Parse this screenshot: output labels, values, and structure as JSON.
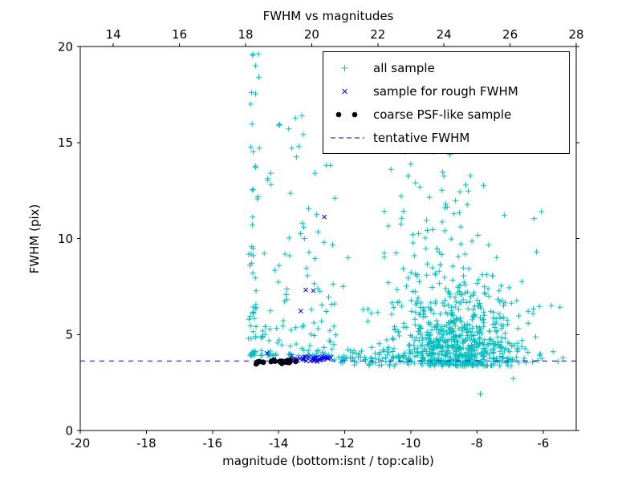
{
  "chart_data": {
    "type": "scatter",
    "title": "FWHM vs magnitudes",
    "xlabel": "magnitude (bottom:isnt / top:calib)",
    "ylabel": "FWHM (pix)",
    "xlim": [
      -20,
      -5
    ],
    "ylim": [
      0,
      20
    ],
    "bottom_ticks": [
      -20,
      -18,
      -16,
      -14,
      -12,
      -10,
      -8,
      -6
    ],
    "top_ticks": [
      14,
      16,
      18,
      20,
      22,
      24,
      26,
      28
    ],
    "top_axis_offset_from_bottom": 33,
    "y_ticks": [
      0,
      5,
      10,
      15,
      20
    ],
    "tentative_fwhm": 3.62,
    "grid": false,
    "legend_position": "upper right",
    "colors": {
      "all_sample": "#00bfbf",
      "rough_sample": "#0000ff",
      "psf_sample": "#000000",
      "tentative_line": "#0000ff",
      "axis": "#000000",
      "background": "#ffffff"
    },
    "legend": [
      {
        "label": "all sample",
        "marker": "plus",
        "color": "#00bfbf"
      },
      {
        "label": "sample for rough FWHM",
        "marker": "x",
        "color": "#0000ff"
      },
      {
        "label": "coarse PSF-like sample",
        "marker": "dot",
        "color": "#000000"
      },
      {
        "label": "tentative FWHM",
        "marker": "dashed-line",
        "color": "#0000ff"
      }
    ],
    "series": [
      {
        "name": "all sample",
        "marker": "plus",
        "color": "#00bfbf",
        "seed": 11,
        "clusters": [
          {
            "count": 55,
            "x": {
              "dist": "gauss",
              "mu": -14.75,
              "sd": 0.07
            },
            "y": {
              "dist": "pow",
              "min": 3.9,
              "max": 19.7,
              "pow": 2.2
            }
          },
          {
            "count": 120,
            "x": {
              "dist": "uniform",
              "min": -14.55,
              "max": -12.25
            },
            "y": {
              "dist": "pow",
              "min": 3.9,
              "max": 16.5,
              "pow": 2.6
            }
          },
          {
            "count": 55,
            "x": {
              "dist": "uniform",
              "min": -12.35,
              "max": -9.9
            },
            "y": {
              "dist": "gauss",
              "mu": 3.75,
              "sd": 0.18
            }
          },
          {
            "count": 760,
            "x": {
              "dist": "gauss",
              "mu": -8.65,
              "sd": 1.0,
              "min": -11.3,
              "max": -5.4
            },
            "y": {
              "dist": "exp",
              "min": 3.35,
              "scale": 1.7,
              "max": 15.6
            }
          },
          {
            "count": 45,
            "x": {
              "dist": "gauss",
              "mu": -9.3,
              "sd": 0.7,
              "min": -10.8,
              "max": -7.8
            },
            "y": {
              "dist": "uniform",
              "min": 8.0,
              "max": 15.5
            }
          }
        ],
        "points": [
          [
            -12.05,
            7.5
          ],
          [
            -11.45,
            6.3
          ],
          [
            -11.0,
            6.15
          ],
          [
            -6.05,
            11.4
          ],
          [
            -6.2,
            9.3
          ],
          [
            -5.75,
            6.5
          ],
          [
            -7.9,
            1.9
          ],
          [
            -6.9,
            2.7
          ],
          [
            -5.55,
            3.6
          ],
          [
            -5.7,
            4.1
          ],
          [
            -13.3,
            16.4
          ],
          [
            -14.0,
            15.9
          ],
          [
            -12.6,
            14.9
          ],
          [
            -14.78,
            19.6
          ],
          [
            -14.7,
            19.0
          ],
          [
            -14.6,
            18.4
          ],
          [
            -14.85,
            17.0
          ],
          [
            -12.3,
            12.1
          ],
          [
            -11.9,
            9.0
          ],
          [
            -10.9,
            14.8
          ],
          [
            -10.6,
            13.6
          ],
          [
            -13.6,
            14.7
          ],
          [
            -12.9,
            13.4
          ]
        ]
      },
      {
        "name": "sample for rough FWHM",
        "marker": "x",
        "color": "#0000ff",
        "seed": 7,
        "clusters": [
          {
            "count": 40,
            "x": {
              "dist": "uniform",
              "min": -13.62,
              "max": -12.38
            },
            "y": {
              "dist": "gauss",
              "mu": 3.73,
              "sd": 0.07
            }
          }
        ],
        "points": [
          [
            -12.62,
            11.12
          ],
          [
            -13.18,
            7.32
          ],
          [
            -12.95,
            7.28
          ],
          [
            -13.33,
            6.22
          ],
          [
            -14.35,
            4.02
          ]
        ]
      },
      {
        "name": "coarse PSF-like sample",
        "marker": "dot",
        "color": "#000000",
        "seed": 3,
        "clusters": [
          {
            "count": 26,
            "x": {
              "dist": "pow",
              "min": -14.68,
              "max": -13.45,
              "pow": 1.4
            },
            "y": {
              "dist": "gauss",
              "mu": 3.6,
              "sd": 0.045
            }
          }
        ],
        "points": []
      }
    ]
  }
}
